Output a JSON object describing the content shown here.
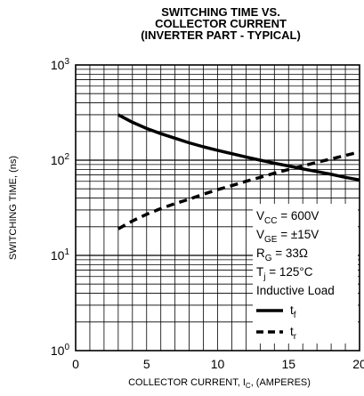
{
  "chart_data": {
    "type": "line",
    "title": [
      "SWITCHING TIME VS.",
      "COLLECTOR CURRENT",
      "(INVERTER PART - TYPICAL)"
    ],
    "xlabel": {
      "prefix": "COLLECTOR CURRENT, I",
      "sub": "C",
      "suffix": ", (AMPERES)"
    },
    "ylabel": "SWITCHING TIME, (ns)",
    "x_ticks": [
      "0",
      "5",
      "10",
      "15",
      "20"
    ],
    "y_ticks": [
      {
        "base": "10",
        "exp": "0"
      },
      {
        "base": "10",
        "exp": "1"
      },
      {
        "base": "10",
        "exp": "2"
      },
      {
        "base": "10",
        "exp": "3"
      }
    ],
    "xlim": [
      0,
      20
    ],
    "ylim": [
      1,
      1000
    ],
    "y_scale": "log",
    "grid": true,
    "conditions": [
      {
        "main": "V",
        "sub": "CC",
        "rest": " = 600V"
      },
      {
        "main": "V",
        "sub": "GE",
        "rest": " = ±15V"
      },
      {
        "main": "R",
        "sub": "G",
        "rest": " = 33Ω"
      },
      {
        "main": "T",
        "sub": "j",
        "rest": " = 125°C"
      },
      {
        "main": "Inductive Load",
        "sub": "",
        "rest": ""
      }
    ],
    "series": [
      {
        "name": "t",
        "sub": "f",
        "style": "solid",
        "x": [
          3,
          4,
          5,
          6,
          7,
          8,
          9,
          10,
          11,
          12,
          13,
          14,
          15,
          16,
          17,
          18,
          19,
          20
        ],
        "y": [
          300,
          250,
          215,
          190,
          170,
          152,
          138,
          127,
          117,
          108,
          100,
          93,
          87,
          81,
          76,
          71,
          66,
          62
        ]
      },
      {
        "name": "t",
        "sub": "r",
        "style": "dashed",
        "x": [
          3,
          4,
          5,
          6,
          7,
          8,
          9,
          10,
          11,
          12,
          13,
          14,
          15,
          16,
          17,
          18,
          19,
          20
        ],
        "y": [
          19,
          23,
          27,
          31,
          35,
          39,
          44,
          49,
          54,
          60,
          66,
          73,
          80,
          87,
          95,
          103,
          112,
          122
        ]
      }
    ]
  }
}
